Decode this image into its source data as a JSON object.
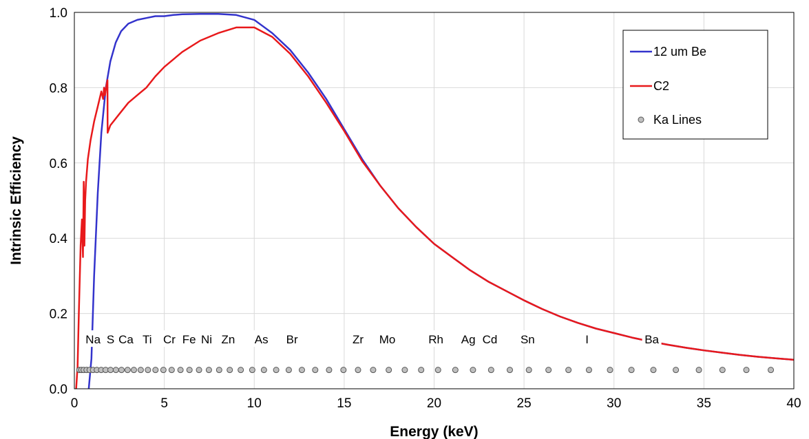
{
  "chart_data": {
    "type": "line",
    "xlabel": "Energy (keV)",
    "ylabel": "Intrinsic Efficiency",
    "xlim": [
      0,
      40
    ],
    "ylim": [
      0,
      1.0
    ],
    "x_ticks": [
      0,
      5,
      10,
      15,
      20,
      25,
      30,
      35,
      40
    ],
    "y_ticks": [
      0.0,
      0.2,
      0.4,
      0.6,
      0.8,
      1.0
    ],
    "y_tick_labels": [
      "0.0",
      "0.2",
      "0.4",
      "0.6",
      "0.8",
      "1.0"
    ],
    "grid": true,
    "legend_position": "top-right",
    "series": [
      {
        "name": "12 um Be",
        "color": "#3333cc",
        "x": [
          0.8,
          0.95,
          1.1,
          1.3,
          1.5,
          1.75,
          2.0,
          2.3,
          2.6,
          3.0,
          3.5,
          4.0,
          4.5,
          5.0,
          5.5,
          6.0,
          7.0,
          8.0,
          9.0,
          10.0,
          11.0,
          12.0,
          13.0,
          14.0,
          15.0,
          16.0,
          17.0,
          18.0,
          19.0,
          20.0,
          21.0,
          22.0,
          23.0,
          24.0,
          25.0,
          26.0,
          27.0,
          28.0,
          29.0,
          30.0,
          31.0,
          32.0,
          33.0,
          34.0,
          35.0,
          36.0,
          37.0,
          38.0,
          39.0,
          40.0
        ],
        "y": [
          0.0,
          0.08,
          0.3,
          0.52,
          0.68,
          0.8,
          0.87,
          0.92,
          0.95,
          0.97,
          0.98,
          0.985,
          0.99,
          0.99,
          0.993,
          0.995,
          0.996,
          0.996,
          0.993,
          0.98,
          0.945,
          0.9,
          0.84,
          0.77,
          0.69,
          0.61,
          0.54,
          0.48,
          0.43,
          0.385,
          0.35,
          0.315,
          0.285,
          0.26,
          0.235,
          0.212,
          0.192,
          0.175,
          0.16,
          0.148,
          0.136,
          0.126,
          0.117,
          0.109,
          0.102,
          0.096,
          0.09,
          0.085,
          0.081,
          0.077
        ]
      },
      {
        "name": "C2",
        "color": "#e8191b",
        "x": [
          0.1,
          0.18,
          0.25,
          0.35,
          0.42,
          0.48,
          0.52,
          0.56,
          0.6,
          0.65,
          0.75,
          0.9,
          1.1,
          1.3,
          1.5,
          1.6,
          1.65,
          1.7,
          1.8,
          1.84,
          1.85,
          2.0,
          2.5,
          3.0,
          3.5,
          4.0,
          4.5,
          5.0,
          6.0,
          7.0,
          8.0,
          9.0,
          10.0,
          11.0,
          12.0,
          13.0,
          14.0,
          15.0,
          16.0,
          17.0,
          18.0,
          19.0,
          20.0,
          21.0,
          22.0,
          23.0,
          24.0,
          25.0,
          26.0,
          27.0,
          28.0,
          29.0,
          30.0,
          31.0,
          32.0,
          33.0,
          34.0,
          35.0,
          36.0,
          37.0,
          38.0,
          39.0,
          40.0
        ],
        "y": [
          0.0,
          0.06,
          0.2,
          0.38,
          0.45,
          0.35,
          0.55,
          0.38,
          0.5,
          0.55,
          0.61,
          0.66,
          0.71,
          0.75,
          0.79,
          0.77,
          0.8,
          0.78,
          0.81,
          0.82,
          0.68,
          0.7,
          0.73,
          0.76,
          0.78,
          0.8,
          0.83,
          0.855,
          0.895,
          0.925,
          0.945,
          0.96,
          0.96,
          0.935,
          0.89,
          0.83,
          0.76,
          0.685,
          0.605,
          0.54,
          0.48,
          0.43,
          0.385,
          0.35,
          0.315,
          0.285,
          0.26,
          0.235,
          0.212,
          0.192,
          0.175,
          0.16,
          0.148,
          0.136,
          0.126,
          0.117,
          0.109,
          0.102,
          0.096,
          0.09,
          0.085,
          0.081,
          0.077
        ]
      },
      {
        "name": "Ka Lines",
        "type": "scatter",
        "marker_color": "#bfbfbf",
        "y_value": 0.05,
        "x": [
          0.28,
          0.39,
          0.52,
          0.68,
          0.85,
          1.04,
          1.25,
          1.49,
          1.74,
          2.01,
          2.31,
          2.62,
          2.96,
          3.31,
          3.69,
          4.09,
          4.51,
          4.95,
          5.41,
          5.9,
          6.4,
          6.93,
          7.48,
          8.05,
          8.64,
          9.25,
          9.89,
          10.54,
          11.22,
          11.92,
          12.65,
          13.39,
          14.16,
          14.96,
          15.77,
          16.61,
          17.48,
          18.37,
          19.28,
          20.22,
          21.18,
          22.16,
          23.17,
          24.21,
          25.27,
          26.36,
          27.47,
          28.61,
          29.78,
          30.97,
          32.19,
          33.44,
          34.72,
          36.03,
          37.36,
          38.72
        ]
      }
    ],
    "element_labels": [
      {
        "text": "Na",
        "x": 1.04
      },
      {
        "text": "S",
        "x": 2.01
      },
      {
        "text": "Ca",
        "x": 2.87
      },
      {
        "text": "Ti",
        "x": 4.05
      },
      {
        "text": "Cr",
        "x": 5.28
      },
      {
        "text": "Fe",
        "x": 6.38
      },
      {
        "text": "Ni",
        "x": 7.35
      },
      {
        "text": "Zn",
        "x": 8.55
      },
      {
        "text": "As",
        "x": 10.4
      },
      {
        "text": "Br",
        "x": 12.1
      },
      {
        "text": "Zr",
        "x": 15.77
      },
      {
        "text": "Mo",
        "x": 17.4
      },
      {
        "text": "Rh",
        "x": 20.1
      },
      {
        "text": "Ag",
        "x": 21.9
      },
      {
        "text": "Cd",
        "x": 23.1
      },
      {
        "text": "Sn",
        "x": 25.2
      },
      {
        "text": "I",
        "x": 28.5
      },
      {
        "text": "Ba",
        "x": 32.1
      }
    ],
    "element_label_y": 0.126
  }
}
